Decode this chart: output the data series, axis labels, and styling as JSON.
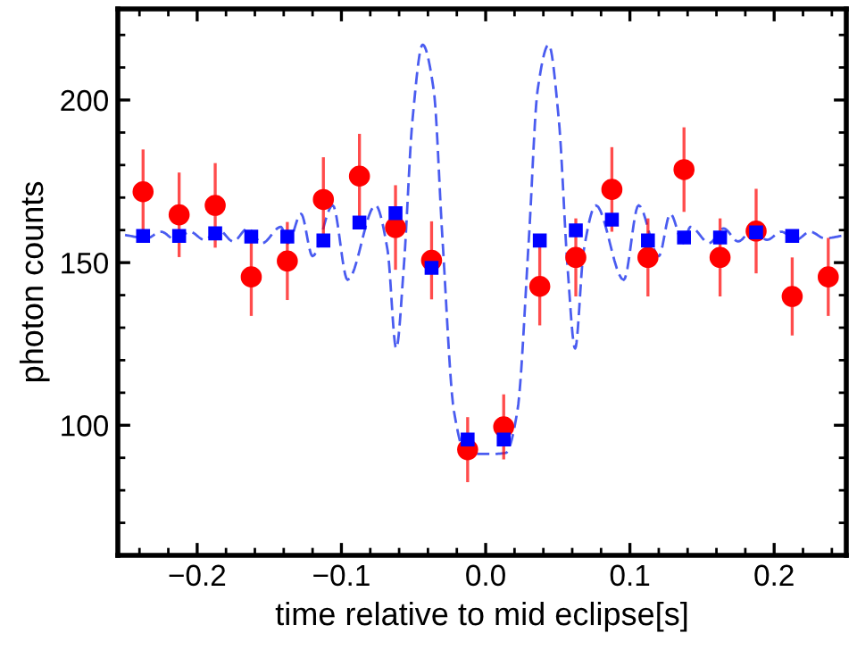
{
  "chart_data": {
    "type": "scatter",
    "xlabel": "time relative to mid eclipse[s]",
    "ylabel": "photon counts",
    "xlim": [
      -0.255,
      0.25
    ],
    "ylim": [
      60,
      228
    ],
    "xticks": [
      {
        "value": -0.2,
        "label": "−0.2"
      },
      {
        "value": -0.1,
        "label": "−0.1"
      },
      {
        "value": 0.0,
        "label": "0.0"
      },
      0.1,
      0.2
    ],
    "yticks": [
      100,
      150,
      200
    ],
    "grid": false,
    "series": [
      {
        "type": "line",
        "color": "#4a5cf0",
        "line_style": "dashed",
        "marker": "none",
        "x": [
          -0.25,
          -0.235,
          -0.225,
          -0.215,
          -0.205,
          -0.195,
          -0.185,
          -0.175,
          -0.165,
          -0.155,
          -0.142,
          -0.137,
          -0.128,
          -0.12,
          -0.106,
          -0.0957,
          -0.0764,
          -0.068,
          -0.062,
          -0.0568,
          -0.0507,
          -0.0437,
          -0.036,
          -0.03,
          -0.022,
          -0.014,
          -0.006,
          0.0,
          0.006,
          0.014,
          0.022,
          0.03,
          0.036,
          0.0437,
          0.0507,
          0.0568,
          0.062,
          0.068,
          0.0764,
          0.0957,
          0.106,
          0.12,
          0.128,
          0.137,
          0.142,
          0.155,
          0.165,
          0.175,
          0.185,
          0.195,
          0.205,
          0.215,
          0.225,
          0.235,
          0.25
        ],
        "values": [
          158.5,
          157.5,
          159.5,
          157,
          159.5,
          157,
          160,
          156.5,
          160.5,
          156,
          161,
          156,
          165,
          152,
          167.6,
          144.7,
          167.6,
          153.8,
          123.6,
          148.4,
          194,
          217,
          203,
          157.7,
          104.4,
          91.5,
          91.2,
          91.2,
          91.2,
          91.5,
          104.4,
          157.7,
          203,
          217,
          194,
          148.4,
          123.6,
          153.8,
          167.6,
          144.7,
          167.6,
          152,
          165,
          156,
          161,
          156,
          160.5,
          156.5,
          160,
          157,
          159.5,
          157,
          159.5,
          157.5,
          158.5
        ]
      },
      {
        "color": "#ff0000",
        "marker": "circle",
        "x": [
          -0.2375,
          -0.2125,
          -0.1875,
          -0.1625,
          -0.1375,
          -0.1125,
          -0.0875,
          -0.0625,
          -0.0375,
          -0.0125,
          0.0125,
          0.0375,
          0.0625,
          0.0875,
          0.1125,
          0.1375,
          0.1625,
          0.1875,
          0.2125,
          0.2375
        ],
        "values": [
          171.8,
          164.7,
          167.6,
          145.6,
          150.5,
          169.4,
          176.6,
          160.8,
          150.7,
          92.5,
          99.5,
          142.7,
          151.6,
          172.5,
          151.6,
          178.6,
          151.6,
          159.7,
          139.6,
          145.6
        ],
        "errors": [
          13,
          13,
          13,
          12,
          12,
          13,
          13,
          13,
          12,
          10,
          10,
          12,
          12,
          13,
          12,
          13,
          12,
          13,
          12,
          12
        ]
      },
      {
        "color": "#0000ff",
        "marker": "square",
        "x": [
          -0.2375,
          -0.2125,
          -0.1875,
          -0.1625,
          -0.1375,
          -0.1125,
          -0.0875,
          -0.0625,
          -0.0375,
          -0.0125,
          0.0125,
          0.0375,
          0.0625,
          0.0875,
          0.1125,
          0.1375,
          0.1625,
          0.1875,
          0.2125
        ],
        "values": [
          158.2,
          158.2,
          159,
          158,
          158,
          156.8,
          162.3,
          165.2,
          148.4,
          95.6,
          95.6,
          156.8,
          159.9,
          163.2,
          156.8,
          157.7,
          157.7,
          159.3,
          158.2
        ]
      }
    ]
  }
}
